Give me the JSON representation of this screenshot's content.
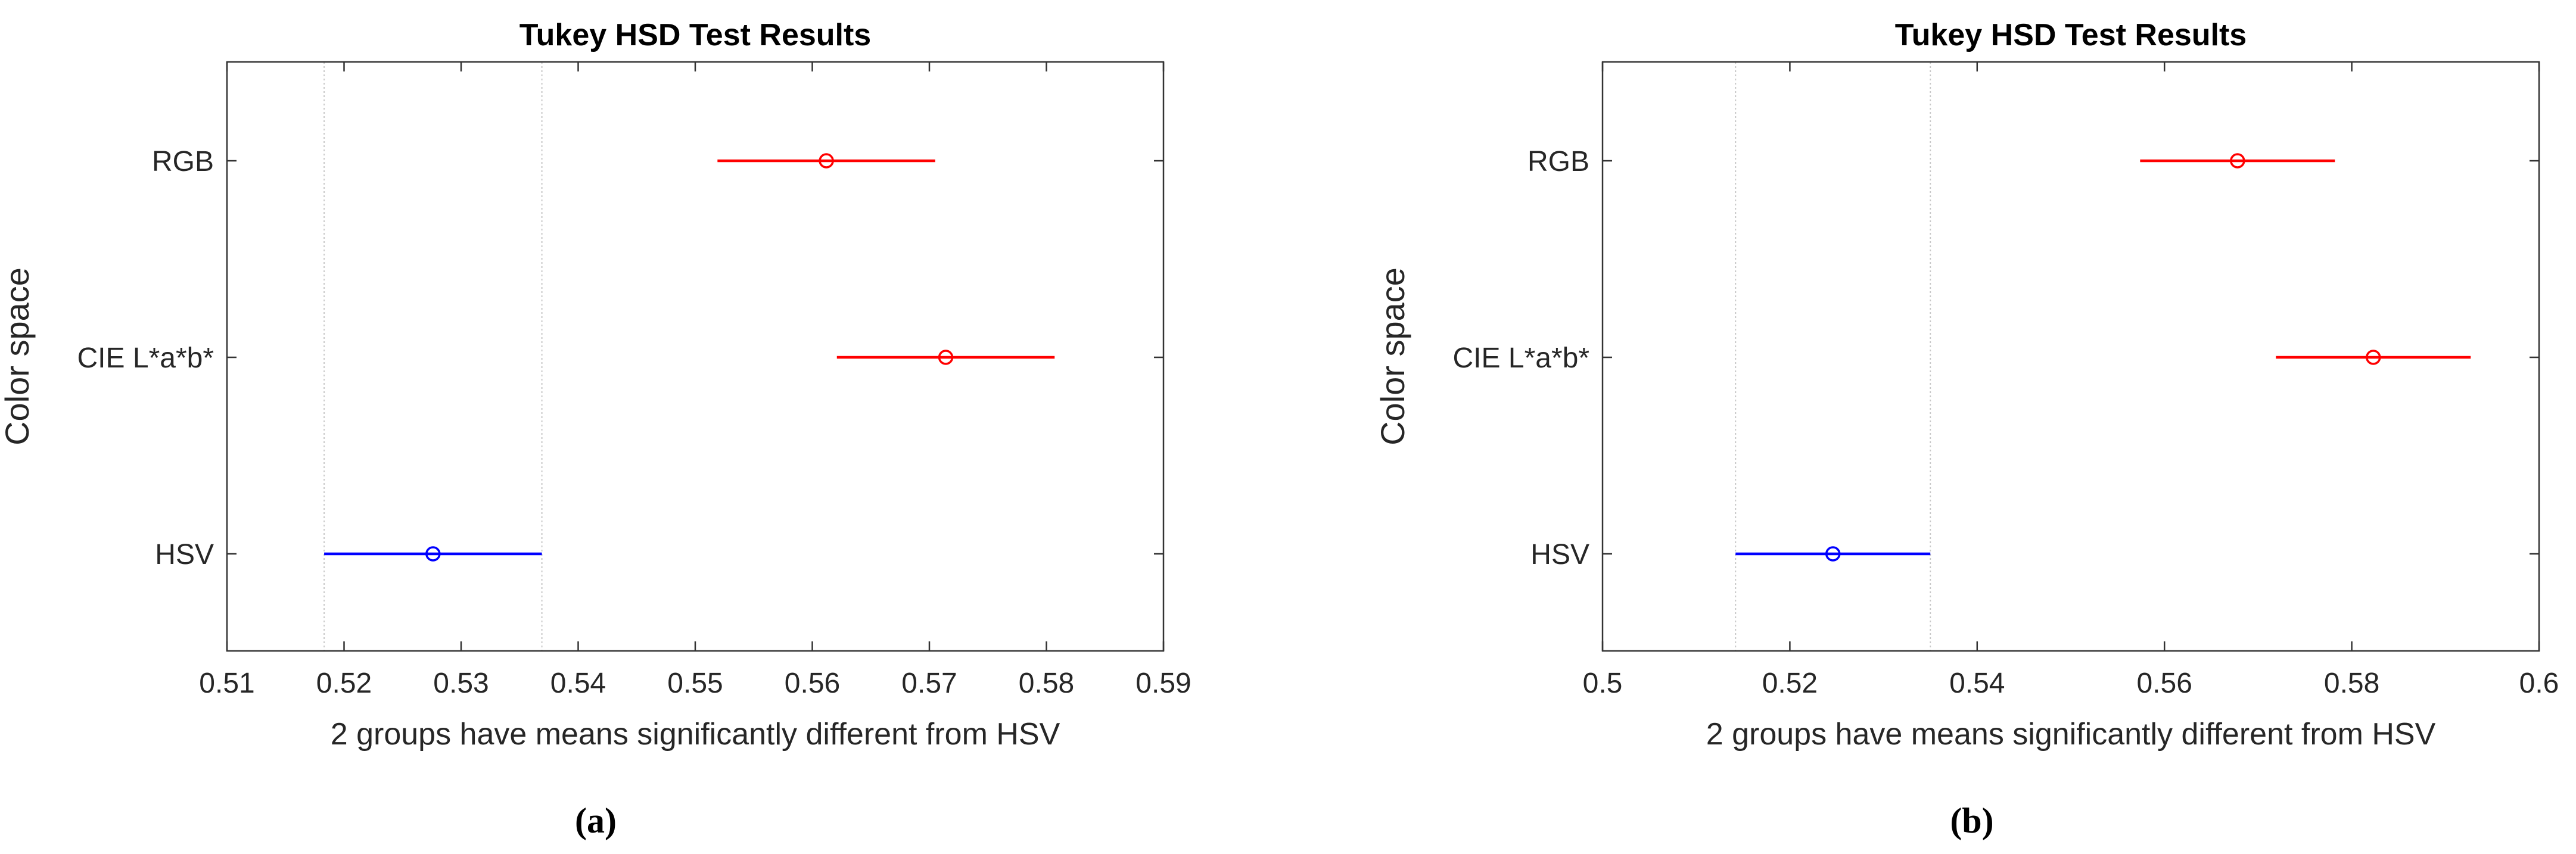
{
  "chart_data": [
    {
      "panel_label": "(a)",
      "type": "multcompare",
      "title": "Tukey HSD Test Results",
      "xlabel": "2 groups have means significantly different from HSV",
      "ylabel": "Color space",
      "xlim": [
        0.51,
        0.59
      ],
      "xticks": [
        0.51,
        0.52,
        0.53,
        0.54,
        0.55,
        0.56,
        0.57,
        0.58,
        0.59
      ],
      "xtick_labels": [
        "0.51",
        "0.52",
        "0.53",
        "0.54",
        "0.55",
        "0.56",
        "0.57",
        "0.58",
        "0.59"
      ],
      "categories": [
        "RGB",
        "CIE L*a*b*",
        "HSV"
      ],
      "reference_group": "HSV",
      "groups": [
        {
          "name": "RGB",
          "mean": 0.5612,
          "lower": 0.5519,
          "upper": 0.5705,
          "color": "#ff0000"
        },
        {
          "name": "CIE L*a*b*",
          "mean": 0.5714,
          "lower": 0.5621,
          "upper": 0.5807,
          "color": "#ff0000"
        },
        {
          "name": "HSV",
          "mean": 0.5276,
          "lower": 0.5183,
          "upper": 0.5369,
          "color": "#0000ff"
        }
      ],
      "reference_lines": [
        0.5183,
        0.5369
      ]
    },
    {
      "panel_label": "(b)",
      "type": "multcompare",
      "title": "Tukey HSD Test Results",
      "xlabel": "2 groups have means significantly different from HSV",
      "ylabel": "Color space",
      "xlim": [
        0.5,
        0.6
      ],
      "xticks": [
        0.5,
        0.52,
        0.54,
        0.56,
        0.58,
        0.6
      ],
      "xtick_labels": [
        "0.5",
        "0.52",
        "0.54",
        "0.56",
        "0.58",
        "0.6"
      ],
      "categories": [
        "RGB",
        "CIE L*a*b*",
        "HSV"
      ],
      "reference_group": "HSV",
      "groups": [
        {
          "name": "RGB",
          "mean": 0.5678,
          "lower": 0.5574,
          "upper": 0.5782,
          "color": "#ff0000"
        },
        {
          "name": "CIE L*a*b*",
          "mean": 0.5823,
          "lower": 0.5719,
          "upper": 0.5927,
          "color": "#ff0000"
        },
        {
          "name": "HSV",
          "mean": 0.5246,
          "lower": 0.5142,
          "upper": 0.535,
          "color": "#0000ff"
        }
      ],
      "reference_lines": [
        0.5142,
        0.535
      ]
    }
  ]
}
